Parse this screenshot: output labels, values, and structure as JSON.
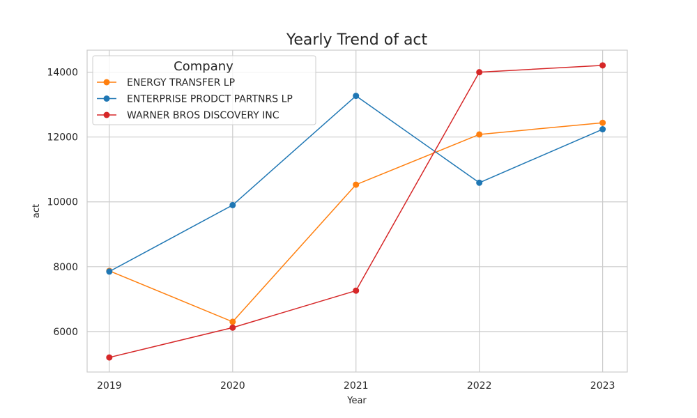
{
  "chart_data": {
    "type": "line",
    "title": "Yearly Trend of act",
    "xlabel": "Year",
    "ylabel": "act",
    "x": [
      2019,
      2020,
      2021,
      2022,
      2023
    ],
    "xlim": [
      2018.82,
      2023.2
    ],
    "ylim": [
      4750,
      14680
    ],
    "yticks": [
      6000,
      8000,
      10000,
      12000,
      14000
    ],
    "grid": true,
    "legend": {
      "title": "Company",
      "placement": "top-left"
    },
    "series": [
      {
        "name": "ENERGY TRANSFER LP",
        "color": "#ff7f0e",
        "values": [
          7870,
          6300,
          10530,
          12080,
          12440
        ]
      },
      {
        "name": "ENTERPRISE PRODCT PARTNRS LP",
        "color": "#1f77b4",
        "values": [
          7850,
          9900,
          13270,
          10590,
          12240
        ]
      },
      {
        "name": "WARNER BROS DISCOVERY INC",
        "color": "#d62728",
        "values": [
          5200,
          6120,
          7260,
          14000,
          14210
        ]
      }
    ]
  }
}
